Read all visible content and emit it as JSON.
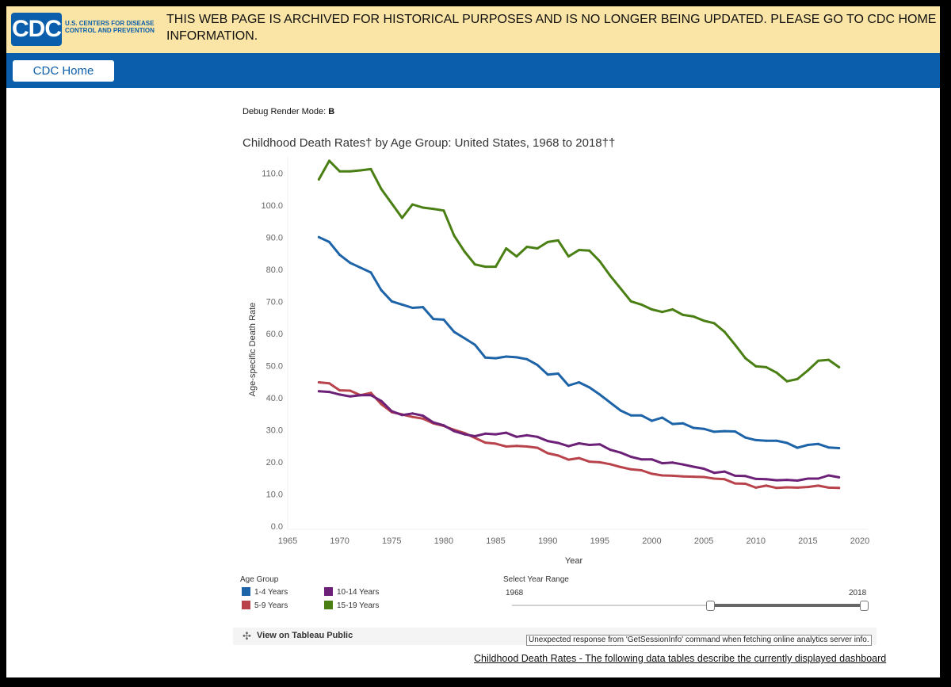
{
  "banner": {
    "logo_text": "CDC",
    "org_line1": "U.S. CENTERS FOR DISEASE",
    "org_line2": "CONTROL AND PREVENTION",
    "message_line1": "THIS WEB PAGE IS ARCHIVED FOR HISTORICAL PURPOSES AND IS NO LONGER BEING UPDATED. PLEASE GO TO CDC HOME OR USE THE A-Z I",
    "message_line2": "INFORMATION."
  },
  "nav": {
    "home_label": "CDC Home"
  },
  "debug": {
    "label": "Debug Render Mode:",
    "value": "B"
  },
  "legend": {
    "title": "Age Group",
    "items": [
      {
        "label": "1-4 Years",
        "color": "#1d63a8"
      },
      {
        "label": "10-14 Years",
        "color": "#6d2077"
      },
      {
        "label": "5-9 Years",
        "color": "#b8434b"
      },
      {
        "label": "15-19 Years",
        "color": "#4a7f14"
      }
    ]
  },
  "year_range": {
    "title": "Select Year Range",
    "min_label": "1968",
    "max_label": "2018"
  },
  "toolbar": {
    "tableau_label": "View on Tableau Public",
    "error_message": "Unexpected response from 'GetSessionInfo' command when fetching online analytics server info."
  },
  "footer": {
    "tables_link": "Childhood Death Rates - The following data tables describe the currently displayed dashboard"
  },
  "chart_data": {
    "type": "line",
    "title": "Childhood Death Rates† by Age Group: United States, 1968 to 2018††",
    "xlabel": "Year",
    "ylabel": "Age-specific Death Rate",
    "xlim": [
      1965,
      2020
    ],
    "ylim": [
      0,
      115
    ],
    "x_ticks": [
      "1965",
      "1970",
      "1975",
      "1980",
      "1985",
      "1990",
      "1995",
      "2000",
      "2005",
      "2010",
      "2015",
      "2020"
    ],
    "y_ticks": [
      "0.0",
      "10.0",
      "20.0",
      "30.0",
      "40.0",
      "50.0",
      "60.0",
      "70.0",
      "80.0",
      "90.0",
      "100.0",
      "110.0"
    ],
    "x": [
      1968,
      1969,
      1970,
      1971,
      1972,
      1973,
      1974,
      1975,
      1976,
      1977,
      1978,
      1979,
      1980,
      1981,
      1982,
      1983,
      1984,
      1985,
      1986,
      1987,
      1988,
      1989,
      1990,
      1991,
      1992,
      1993,
      1994,
      1995,
      1996,
      1997,
      1998,
      1999,
      2000,
      2001,
      2002,
      2003,
      2004,
      2005,
      2006,
      2007,
      2008,
      2009,
      2010,
      2011,
      2012,
      2013,
      2014,
      2015,
      2016,
      2017,
      2018
    ],
    "series": [
      {
        "name": "1-4 Years",
        "color": "#1d63a8",
        "values": [
          90.0,
          88.5,
          84.5,
          82.0,
          80.5,
          79.0,
          73.5,
          70.0,
          69.0,
          68.0,
          68.2,
          64.5,
          64.3,
          60.5,
          58.5,
          56.5,
          52.5,
          52.3,
          52.8,
          52.6,
          52.0,
          50.2,
          47.2,
          47.5,
          43.8,
          44.8,
          43.2,
          41.0,
          38.5,
          36.0,
          34.5,
          34.5,
          32.8,
          33.8,
          31.8,
          32.0,
          30.6,
          30.3,
          29.4,
          29.6,
          29.5,
          27.6,
          26.8,
          26.6,
          26.6,
          25.9,
          24.4,
          25.3,
          25.6,
          24.5,
          24.3
        ]
      },
      {
        "name": "5-9 Years",
        "color": "#b8434b",
        "values": [
          44.8,
          44.5,
          42.3,
          42.2,
          40.8,
          41.5,
          38.0,
          35.5,
          34.8,
          34.0,
          33.5,
          32.0,
          31.2,
          30.0,
          29.0,
          27.5,
          26.0,
          25.7,
          24.8,
          25.0,
          24.8,
          24.4,
          22.7,
          22.0,
          20.7,
          21.2,
          20.1,
          19.9,
          19.3,
          18.4,
          17.7,
          17.4,
          16.3,
          15.8,
          15.7,
          15.5,
          15.4,
          15.3,
          14.8,
          14.6,
          13.3,
          13.2,
          12.0,
          12.6,
          11.9,
          12.1,
          12.0,
          12.2,
          12.6,
          12.0,
          11.9
        ]
      },
      {
        "name": "10-14 Years",
        "color": "#6d2077",
        "values": [
          42.0,
          41.8,
          41.0,
          40.4,
          40.8,
          40.8,
          39.0,
          35.8,
          34.6,
          35.1,
          34.4,
          32.3,
          31.4,
          29.6,
          28.6,
          28.0,
          28.8,
          28.6,
          29.1,
          27.8,
          28.3,
          27.8,
          26.5,
          25.9,
          24.9,
          25.8,
          25.3,
          25.5,
          23.8,
          22.9,
          21.6,
          20.8,
          20.8,
          19.6,
          19.8,
          19.2,
          18.5,
          17.9,
          16.6,
          17.0,
          15.7,
          15.6,
          14.7,
          14.6,
          14.3,
          14.4,
          14.2,
          14.8,
          14.8,
          15.8,
          15.2
        ]
      },
      {
        "name": "15-19 Years",
        "color": "#4a7f14",
        "values": [
          108.0,
          113.8,
          110.5,
          110.5,
          110.8,
          111.2,
          105.0,
          100.5,
          96.0,
          100.2,
          99.2,
          98.8,
          98.3,
          90.5,
          85.5,
          81.5,
          80.8,
          80.8,
          86.5,
          84.0,
          87.0,
          86.5,
          88.5,
          89.0,
          84.0,
          86.0,
          85.8,
          82.5,
          78.0,
          74.0,
          70.0,
          69.0,
          67.5,
          66.7,
          67.5,
          65.8,
          65.3,
          64.0,
          63.2,
          60.5,
          56.5,
          52.3,
          49.8,
          49.5,
          47.8,
          45.1,
          45.8,
          48.5,
          51.5,
          51.8,
          49.5
        ]
      }
    ]
  }
}
